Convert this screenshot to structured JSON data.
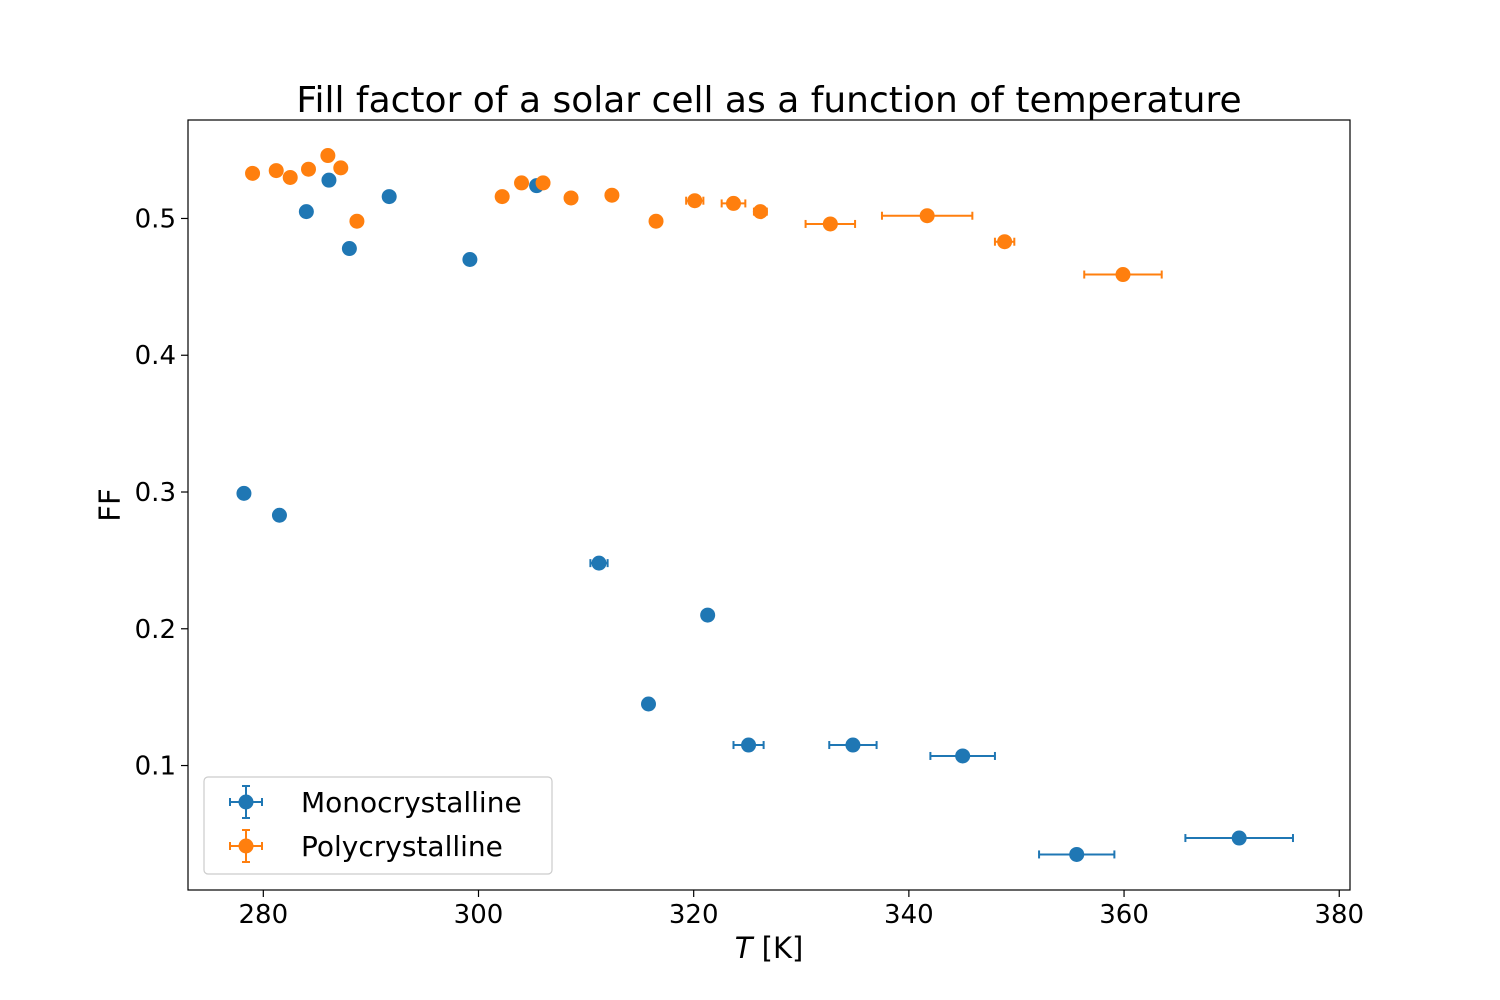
{
  "chart_data": {
    "type": "scatter",
    "title": "Fill factor of a solar cell as a function of temperature",
    "xlabel_symbol": "T",
    "xlabel_unit": " [K]",
    "ylabel": "FF",
    "xlim": [
      273,
      381
    ],
    "ylim": [
      0.009,
      0.572
    ],
    "xticks": [
      280,
      300,
      320,
      340,
      360,
      380
    ],
    "xtick_labels": [
      "280",
      "300",
      "320",
      "340",
      "360",
      "380"
    ],
    "yticks": [
      0.1,
      0.2,
      0.3,
      0.4,
      0.5
    ],
    "ytick_labels": [
      "0.1",
      "0.2",
      "0.3",
      "0.4",
      "0.5"
    ],
    "grid": false,
    "legend_position": "lower-left",
    "error_bars": true,
    "series": [
      {
        "name": "Monocrystalline",
        "color": "#1f77b4",
        "points": [
          {
            "x": 278.2,
            "y": 0.299,
            "xerr": 0.4
          },
          {
            "x": 281.5,
            "y": 0.283,
            "xerr": 0
          },
          {
            "x": 284.0,
            "y": 0.505,
            "xerr": 0
          },
          {
            "x": 286.1,
            "y": 0.528,
            "xerr": 0
          },
          {
            "x": 288.0,
            "y": 0.478,
            "xerr": 0
          },
          {
            "x": 291.7,
            "y": 0.516,
            "xerr": 0
          },
          {
            "x": 299.2,
            "y": 0.47,
            "xerr": 0
          },
          {
            "x": 305.4,
            "y": 0.524,
            "xerr": 0
          },
          {
            "x": 311.2,
            "y": 0.248,
            "xerr": 0.8
          },
          {
            "x": 315.8,
            "y": 0.145,
            "xerr": 0
          },
          {
            "x": 321.3,
            "y": 0.21,
            "xerr": 0
          },
          {
            "x": 325.1,
            "y": 0.115,
            "xerr": 1.4
          },
          {
            "x": 334.8,
            "y": 0.115,
            "xerr": 2.2
          },
          {
            "x": 345.0,
            "y": 0.107,
            "xerr": 3.0
          },
          {
            "x": 355.6,
            "y": 0.035,
            "xerr": 3.5
          },
          {
            "x": 370.7,
            "y": 0.047,
            "xerr": 5.0
          }
        ]
      },
      {
        "name": "Polycrystalline",
        "color": "#ff7f0e",
        "points": [
          {
            "x": 279.0,
            "y": 0.533,
            "xerr": 0
          },
          {
            "x": 281.2,
            "y": 0.535,
            "xerr": 0
          },
          {
            "x": 282.5,
            "y": 0.53,
            "xerr": 0
          },
          {
            "x": 284.2,
            "y": 0.536,
            "xerr": 0
          },
          {
            "x": 286.0,
            "y": 0.546,
            "xerr": 0
          },
          {
            "x": 287.2,
            "y": 0.537,
            "xerr": 0
          },
          {
            "x": 288.7,
            "y": 0.498,
            "xerr": 0
          },
          {
            "x": 302.2,
            "y": 0.516,
            "xerr": 0
          },
          {
            "x": 304.0,
            "y": 0.526,
            "xerr": 0
          },
          {
            "x": 306.0,
            "y": 0.526,
            "xerr": 0
          },
          {
            "x": 308.6,
            "y": 0.515,
            "xerr": 0
          },
          {
            "x": 312.4,
            "y": 0.517,
            "xerr": 0
          },
          {
            "x": 316.5,
            "y": 0.498,
            "xerr": 0
          },
          {
            "x": 320.1,
            "y": 0.513,
            "xerr": 0.8
          },
          {
            "x": 323.7,
            "y": 0.511,
            "xerr": 1.1
          },
          {
            "x": 326.2,
            "y": 0.505,
            "xerr": 0.6
          },
          {
            "x": 332.7,
            "y": 0.496,
            "xerr": 2.3
          },
          {
            "x": 341.7,
            "y": 0.502,
            "xerr": 4.2
          },
          {
            "x": 348.9,
            "y": 0.483,
            "xerr": 0.9
          },
          {
            "x": 359.9,
            "y": 0.459,
            "xerr": 3.6
          }
        ]
      }
    ]
  }
}
